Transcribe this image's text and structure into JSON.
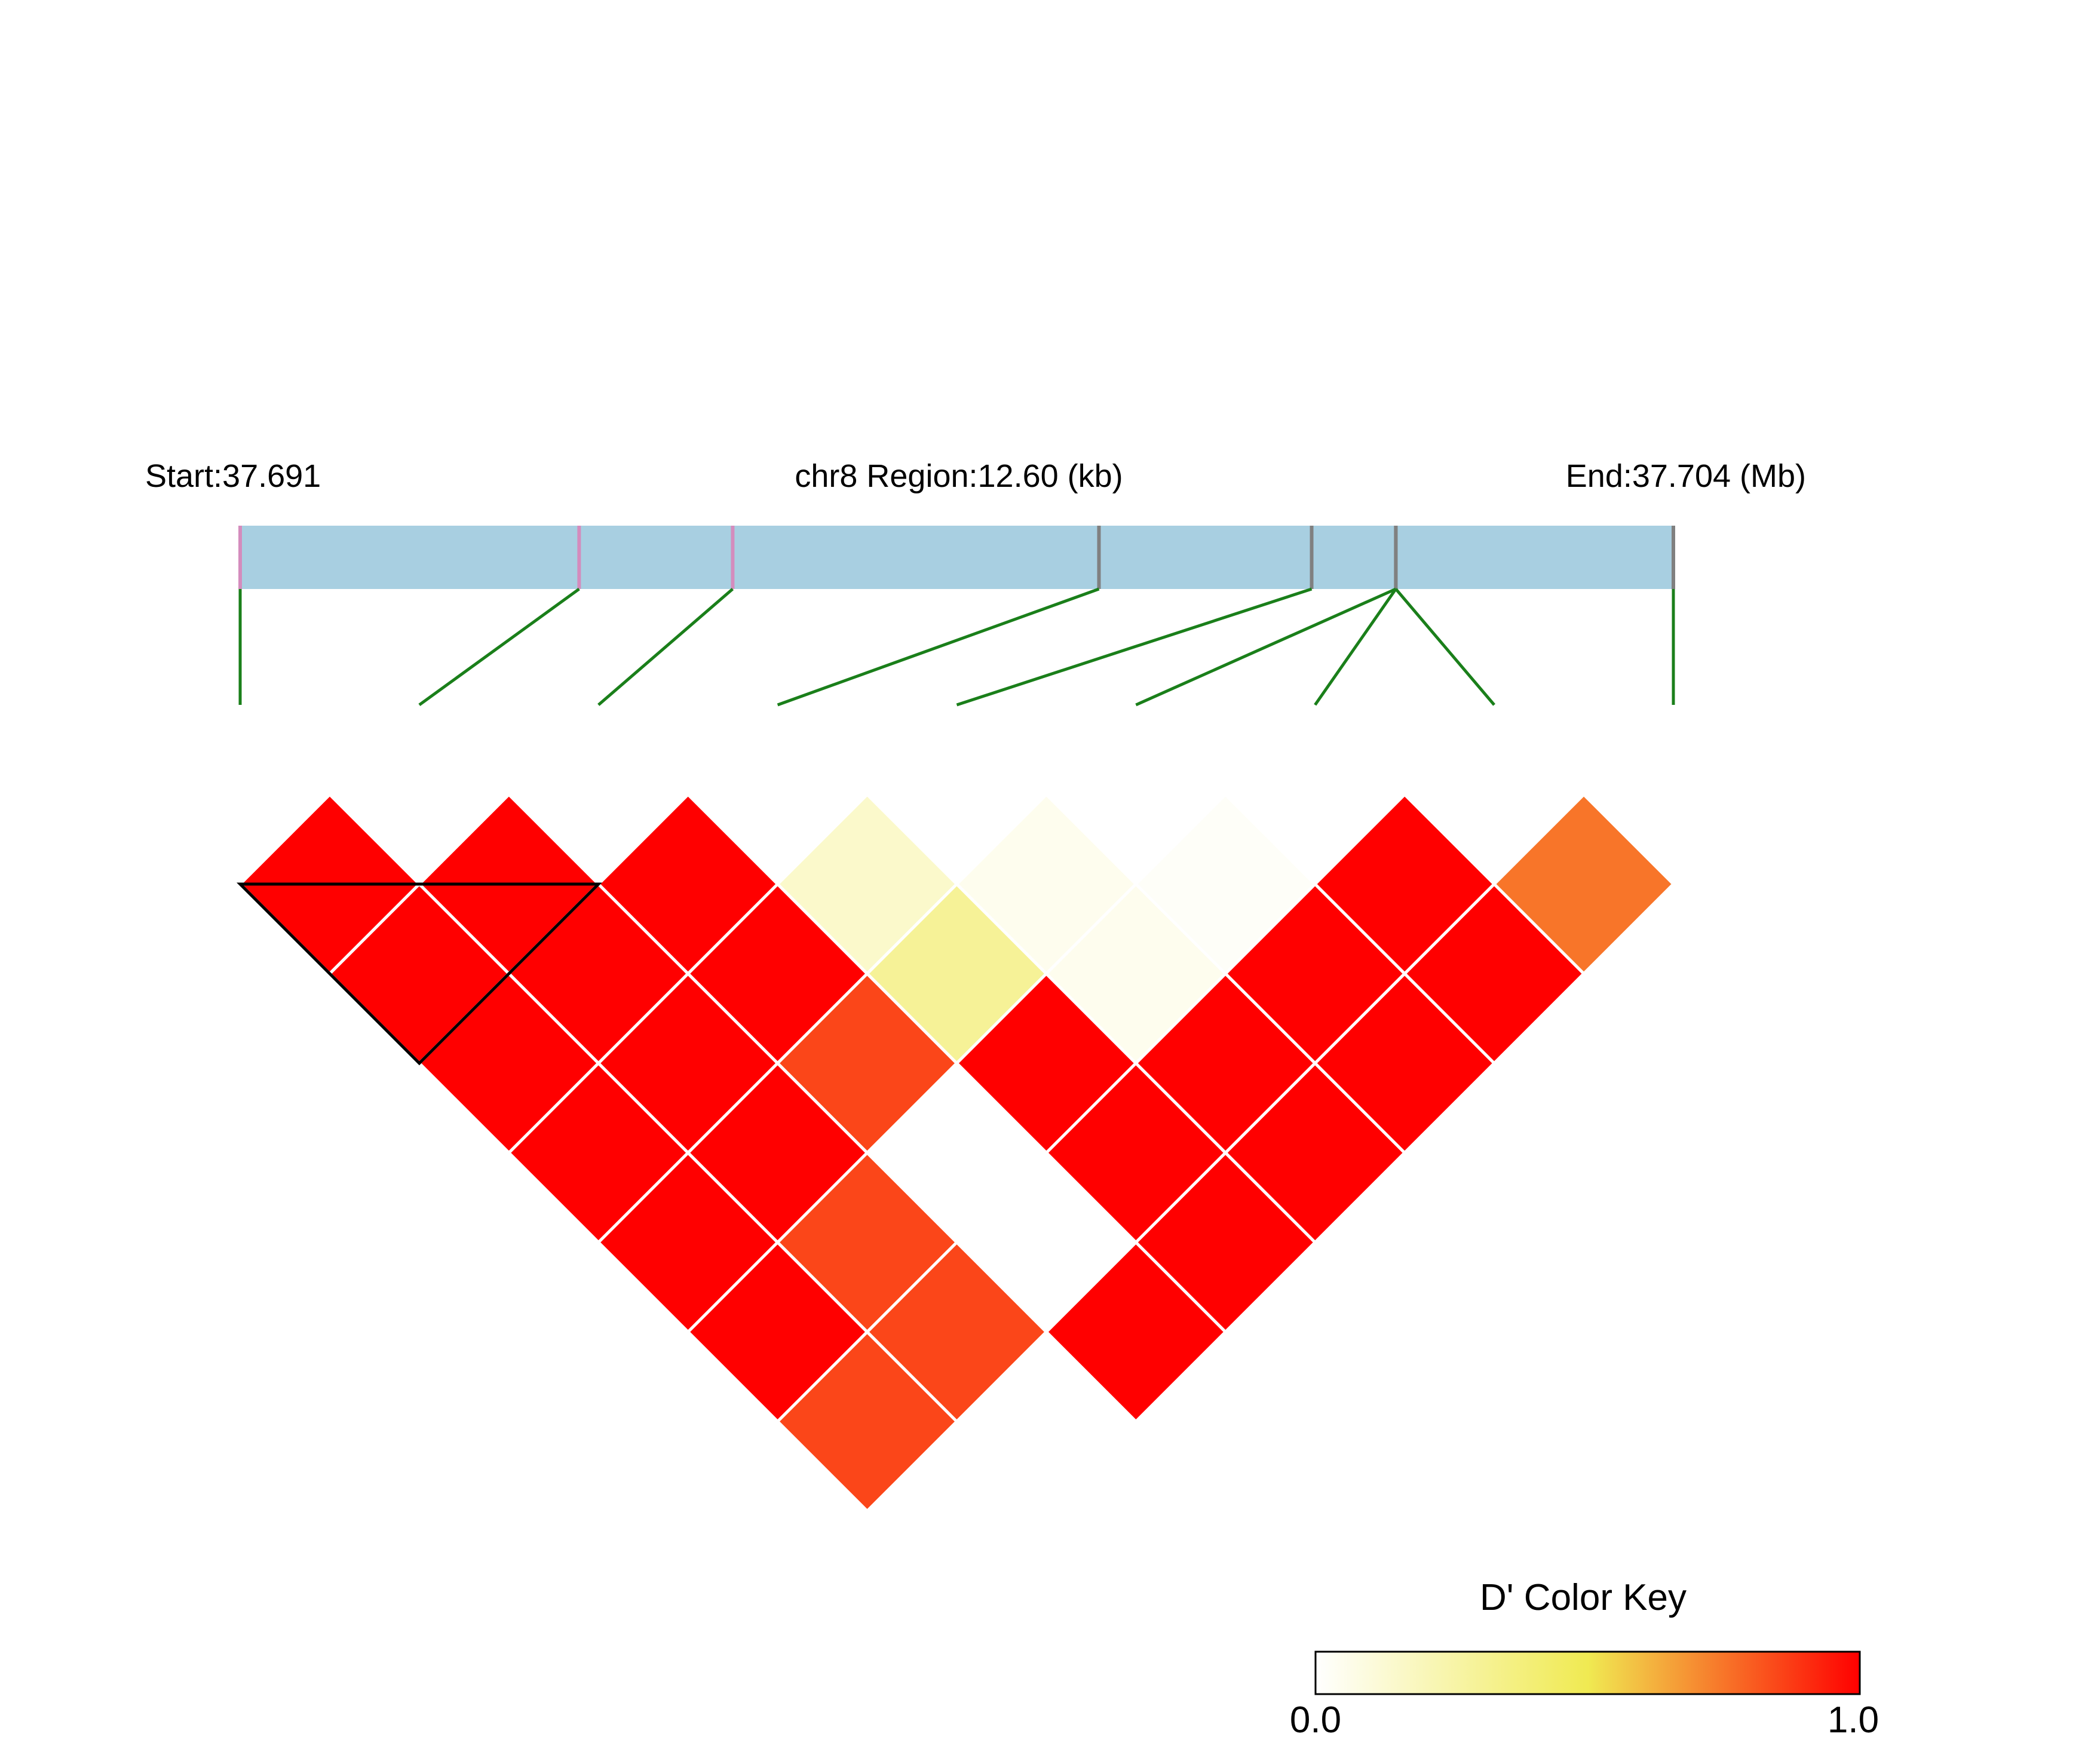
{
  "header": {
    "start_label": "Start:37.691",
    "region_label": "chr8 Region:12.60 (kb)",
    "end_label": "End:37.704 (Mb)"
  },
  "legend": {
    "title": "D' Color Key",
    "min_label": "0.0",
    "max_label": "1.0"
  },
  "chart_data": {
    "type": "heatmap",
    "subtype": "LD triangle (D')",
    "chromosome": "chr8",
    "region_start_mb": 37.691,
    "region_end_mb": 37.704,
    "region_length_kb": 12.6,
    "snp_count": 9,
    "snp_positions_kb": [
      0.0,
      2.98,
      4.33,
      7.55,
      9.42,
      10.16,
      10.16,
      10.16,
      12.6
    ],
    "snp_tick_colors": [
      "#d48cbd",
      "#d48cbd",
      "#d48cbd",
      "#808080",
      "#808080",
      "#808080",
      "#808080",
      "#808080",
      "#808080"
    ],
    "value_range": [
      0.0,
      1.0
    ],
    "colorscale": [
      "#ffffff",
      "#f0ea52",
      "#ff0000"
    ],
    "d_prime_matrix": [
      [
        null,
        1.0,
        1.0,
        1.0,
        1.0,
        1.0,
        1.0,
        0.85,
        null
      ],
      [
        1.0,
        null,
        1.0,
        1.0,
        1.0,
        1.0,
        0.85,
        0.85,
        null
      ],
      [
        1.0,
        1.0,
        null,
        1.0,
        1.0,
        0.85,
        null,
        null,
        1.0
      ],
      [
        1.0,
        1.0,
        1.0,
        null,
        0.15,
        0.3,
        1.0,
        1.0,
        1.0
      ],
      [
        1.0,
        1.0,
        1.0,
        0.15,
        null,
        0.05,
        0.05,
        1.0,
        1.0
      ],
      [
        1.0,
        1.0,
        0.85,
        0.3,
        0.05,
        null,
        0.02,
        1.0,
        1.0
      ],
      [
        1.0,
        0.85,
        null,
        1.0,
        0.05,
        0.02,
        null,
        1.0,
        1.0
      ],
      [
        0.85,
        0.85,
        null,
        1.0,
        1.0,
        1.0,
        1.0,
        null,
        0.75
      ],
      [
        null,
        null,
        1.0,
        1.0,
        1.0,
        1.0,
        1.0,
        0.75,
        null
      ]
    ],
    "haplotype_blocks": [
      [
        1,
        3
      ]
    ],
    "legend_position": "bottom-right"
  }
}
